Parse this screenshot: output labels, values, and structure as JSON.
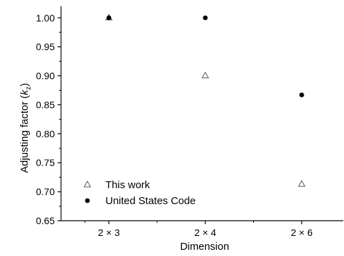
{
  "chart_data": {
    "type": "scatter",
    "categories": [
      "2 × 3",
      "2 × 4",
      "2 × 6"
    ],
    "xlabel": "Dimension",
    "ylabel_main": "Adjusting factor (",
    "ylabel_var": "k",
    "ylabel_sub": "z",
    "ylabel_end": ")",
    "ylim": [
      0.65,
      1.02
    ],
    "yticks": [
      0.65,
      0.7,
      0.75,
      0.8,
      0.85,
      0.9,
      0.95,
      1.0
    ],
    "ytick_labels": [
      "0.65",
      "0.70",
      "0.75",
      "0.80",
      "0.85",
      "0.90",
      "0.95",
      "1.00"
    ],
    "legend_position": "lower-left",
    "grid": false,
    "series": [
      {
        "name": "This work",
        "marker": "open-triangle",
        "color": "#555555",
        "values": [
          1.0,
          0.9,
          0.713
        ]
      },
      {
        "name": "United States Code",
        "marker": "filled-circle",
        "color": "#000000",
        "values": [
          1.0,
          1.0,
          0.867
        ]
      }
    ]
  }
}
